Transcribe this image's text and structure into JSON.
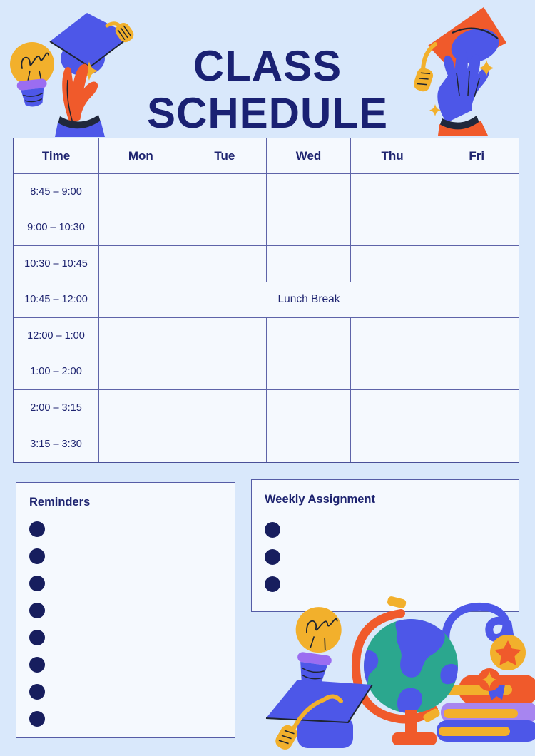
{
  "title": {
    "line1": "CLASS",
    "line2": "SCHEDULE"
  },
  "schedule_table": {
    "columns": [
      "Time",
      "Mon",
      "Tue",
      "Wed",
      "Thu",
      "Fri"
    ],
    "rows": [
      {
        "time": "8:45 – 9:00"
      },
      {
        "time": "9:00 – 10:30"
      },
      {
        "time": "10:30 – 10:45"
      },
      {
        "time": "10:45 – 12:00",
        "merged_label": "Lunch Break"
      },
      {
        "time": "12:00 – 1:00"
      },
      {
        "time": "1:00 – 2:00"
      },
      {
        "time": "2:00 – 3:15"
      },
      {
        "time": "3:15 – 3:30"
      }
    ]
  },
  "panels": {
    "reminders": {
      "title": "Reminders",
      "bullet_count": 8
    },
    "weekly_assignment": {
      "title": "Weekly Assignment",
      "bullet_count": 3
    }
  },
  "colors": {
    "page_background": "#d9e8fb",
    "cell_background": "#f5f9fe",
    "navy_text": "#1e2470",
    "table_border": "#5e64a9",
    "orange": "#f05a2b",
    "yellow": "#f2b02c",
    "royal_blue": "#4d57e8",
    "purple": "#9b6df1",
    "teal": "#2ba78e"
  },
  "illustrations": {
    "top_left": [
      "graduation-cap-icon",
      "lightbulb-icon",
      "hand-icon",
      "sparkle-icon"
    ],
    "top_right": [
      "graduation-cap-icon",
      "hand-icon",
      "sparkle-icon"
    ],
    "bottom_right": [
      "lightbulb-icon",
      "graduation-cap-icon",
      "globe-icon",
      "books-icon",
      "medal-icon",
      "cord-icon"
    ]
  }
}
